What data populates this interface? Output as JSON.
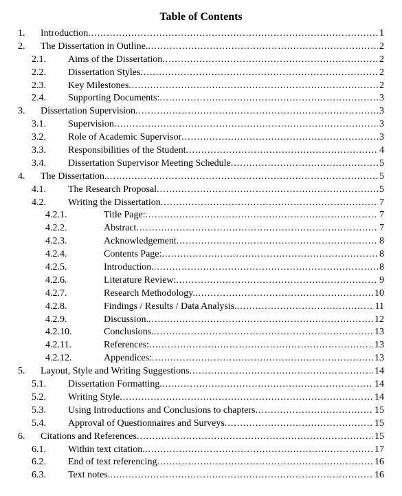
{
  "title": "Table of Contents",
  "font_family": "Times New Roman",
  "title_fontsize": 16,
  "body_fontsize": 14,
  "text_color": "#000000",
  "background_color": "#ffffff",
  "entries": [
    {
      "level": 1,
      "num": "1.",
      "label": "Introduction",
      "page": "1"
    },
    {
      "level": 1,
      "num": "2.",
      "label": "The Dissertation in Outline.",
      "page": "2"
    },
    {
      "level": 2,
      "num": "2.1.",
      "label": "Aims of the Dissertation ",
      "page": "2"
    },
    {
      "level": 2,
      "num": "2.2.",
      "label": "Dissertation Styles ",
      "page": "2"
    },
    {
      "level": 2,
      "num": "2.3.",
      "label": "Key Milestones ",
      "page": "2"
    },
    {
      "level": 2,
      "num": "2.4.",
      "label": "Supporting Documents: ",
      "page": "3"
    },
    {
      "level": 1,
      "num": "3.",
      "label": "Dissertation Supervision ",
      "page": "3"
    },
    {
      "level": 2,
      "num": "3.1.",
      "label": "Supervision ",
      "page": "3"
    },
    {
      "level": 2,
      "num": "3.2.",
      "label": "Role of Academic Supervisor ",
      "page": "3"
    },
    {
      "level": 2,
      "num": "3.3.",
      "label": "Responsibilities of the Student",
      "page": "4"
    },
    {
      "level": 2,
      "num": "3.4.",
      "label": "Dissertation Supervisor Meeting Schedule",
      "page": "5"
    },
    {
      "level": 1,
      "num": "4.",
      "label": "The Dissertation.",
      "page": "5"
    },
    {
      "level": 2,
      "num": "4.1.",
      "label": "The Research Proposal",
      "page": "5"
    },
    {
      "level": 2,
      "num": "4.2.",
      "label": "Writing the Dissertation ",
      "page": "7"
    },
    {
      "level": 3,
      "num": "4.2.1.",
      "label": "Title Page: ",
      "page": "7"
    },
    {
      "level": 3,
      "num": "4.2.2.",
      "label": "Abstract ",
      "page": "7"
    },
    {
      "level": 3,
      "num": "4.2.3.",
      "label": "Acknowledgement ",
      "page": "8"
    },
    {
      "level": 3,
      "num": "4.2.4.",
      "label": "Contents Page: ",
      "page": "8"
    },
    {
      "level": 3,
      "num": "4.2.5.",
      "label": "Introduction.",
      "page": "8"
    },
    {
      "level": 3,
      "num": "4.2.6.",
      "label": "Literature Review: ",
      "page": "9"
    },
    {
      "level": 3,
      "num": "4.2.7.",
      "label": "Research Methodology.",
      "page": "10"
    },
    {
      "level": 3,
      "num": "4.2.8.",
      "label": "Findings / Results / Data Analysis.",
      "page": "11"
    },
    {
      "level": 3,
      "num": "4.2.9.",
      "label": "Discussion. ",
      "page": "12"
    },
    {
      "level": 3,
      "num": "4.2.10.",
      "label": "Conclusions.",
      "page": "13"
    },
    {
      "level": 3,
      "num": "4.2.11.",
      "label": "References:",
      "page": "13"
    },
    {
      "level": 3,
      "num": "4.2.12.",
      "label": "Appendices:",
      "page": "13"
    },
    {
      "level": 1,
      "num": "5.",
      "label": "Layout, Style and Writing Suggestions ",
      "page": "14"
    },
    {
      "level": 2,
      "num": "5.1.",
      "label": "Dissertation Formatting.",
      "page": "14"
    },
    {
      "level": 2,
      "num": "5.2.",
      "label": "Writing Style ",
      "page": "14"
    },
    {
      "level": 2,
      "num": "5.3.",
      "label": "Using Introductions and Conclusions to chapters",
      "page": "15"
    },
    {
      "level": 2,
      "num": "5.4.",
      "label": "Approval of Questionnaires and Surveys ",
      "page": "15"
    },
    {
      "level": 1,
      "num": "6.",
      "label": "Citations and References ",
      "page": "15"
    },
    {
      "level": 2,
      "num": "6.1.",
      "label": "Within text citation.",
      "page": "17"
    },
    {
      "level": 2,
      "num": "6.2.",
      "label": "End of text referencing",
      "page": "16"
    },
    {
      "level": 2,
      "num": "6.3.",
      "label": "Text notes.",
      "page": "16"
    }
  ]
}
